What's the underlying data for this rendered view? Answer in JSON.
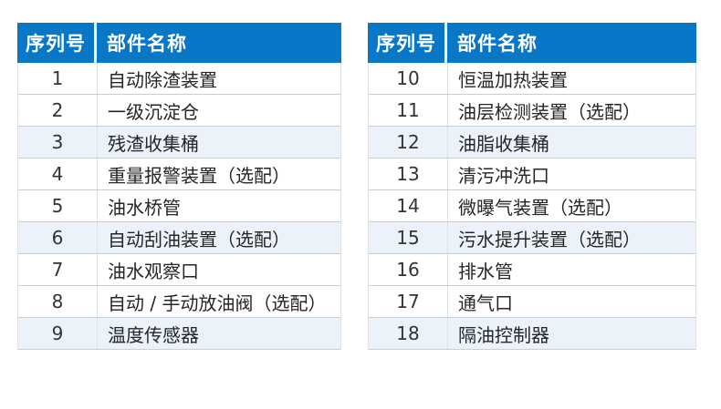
{
  "colors": {
    "header_bg": "#0877C8",
    "header_text": "#FFFFFF",
    "row_tint": "#ECF2F9",
    "row_line": "#C9CED5",
    "text": "#262626"
  },
  "left_table": {
    "headers": {
      "serial": "序列号",
      "name": "部件名称"
    },
    "rows": [
      {
        "serial": "1",
        "name": "自动除渣装置"
      },
      {
        "serial": "2",
        "name": "一级沉淀仓"
      },
      {
        "serial": "3",
        "name": "残渣收集桶"
      },
      {
        "serial": "4",
        "name": "重量报警装置（选配）"
      },
      {
        "serial": "5",
        "name": "油水桥管"
      },
      {
        "serial": "6",
        "name": "自动刮油装置（选配）"
      },
      {
        "serial": "7",
        "name": "油水观察口"
      },
      {
        "serial": "8",
        "name": "自动 / 手动放油阀（选配）"
      },
      {
        "serial": "9",
        "name": "温度传感器"
      }
    ]
  },
  "right_table": {
    "headers": {
      "serial": "序列号",
      "name": "部件名称"
    },
    "rows": [
      {
        "serial": "10",
        "name": "恒温加热装置"
      },
      {
        "serial": "11",
        "name": "油层检测装置（选配）"
      },
      {
        "serial": "12",
        "name": "油脂收集桶"
      },
      {
        "serial": "13",
        "name": "清污冲洗口"
      },
      {
        "serial": "14",
        "name": "微曝气装置（选配）"
      },
      {
        "serial": "15",
        "name": "污水提升装置（选配）"
      },
      {
        "serial": "16",
        "name": "排水管"
      },
      {
        "serial": "17",
        "name": "通气口"
      },
      {
        "serial": "18",
        "name": "隔油控制器"
      }
    ]
  }
}
